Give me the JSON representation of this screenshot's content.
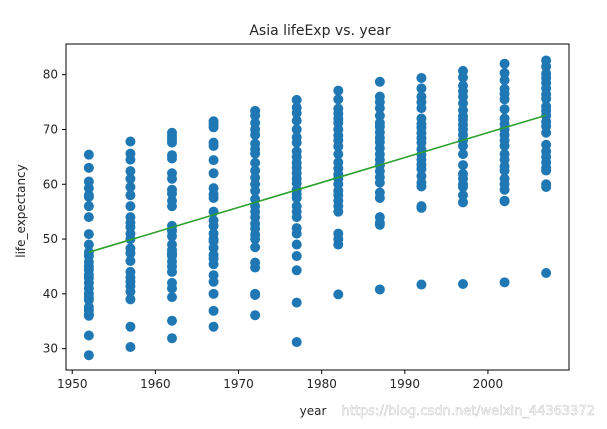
{
  "chart_data": {
    "type": "scatter",
    "title": "Asia lifeExp vs. year",
    "xlabel": "year",
    "ylabel": "life_expectancy",
    "xlim": [
      1949.25,
      2009.75
    ],
    "ylim": [
      26.1,
      85.6
    ],
    "xticks": [
      1950,
      1960,
      1970,
      1980,
      1990,
      2000
    ],
    "yticks": [
      30,
      40,
      50,
      60,
      70,
      80
    ],
    "grid": false,
    "colors": {
      "points": "#1f77b4",
      "fit_line": "#2ca02c",
      "axes": "#000000"
    },
    "points": [
      {
        "year": 1952,
        "values": [
          65.4,
          63.0,
          60.5,
          59.3,
          58.0,
          57.7,
          56.0,
          54.0,
          50.9,
          49.0,
          47.6,
          46.9,
          45.8,
          45.0,
          44.4,
          43.5,
          42.9,
          42.0,
          41.0,
          40.0,
          39.3,
          38.9,
          37.6,
          37.0,
          36.3,
          36.0,
          32.4,
          28.8
        ]
      },
      {
        "year": 1957,
        "values": [
          67.8,
          65.6,
          64.5,
          62.4,
          61.0,
          59.5,
          58.0,
          56.0,
          54.0,
          53.0,
          52.2,
          51.0,
          50.0,
          48.3,
          47.4,
          46.0,
          44.0,
          43.0,
          42.2,
          41.4,
          40.4,
          39.0,
          34.0,
          30.3
        ]
      },
      {
        "year": 1962,
        "values": [
          69.4,
          68.8,
          68.2,
          67.6,
          65.3,
          64.7,
          62.0,
          61.0,
          59.0,
          58.3,
          57.0,
          56.0,
          52.4,
          51.5,
          50.5,
          49.0,
          48.0,
          47.4,
          46.9,
          45.9,
          45.0,
          44.0,
          42.0,
          41.0,
          39.4,
          35.1,
          31.9
        ]
      },
      {
        "year": 1967,
        "values": [
          71.5,
          71.0,
          70.4,
          67.6,
          67.0,
          64.4,
          62.0,
          59.3,
          58.2,
          57.5,
          55.0,
          53.4,
          52.4,
          51.0,
          50.0,
          49.6,
          48.4,
          47.1,
          46.4,
          45.4,
          43.4,
          42.2,
          40.0,
          36.9,
          34.0
        ]
      },
      {
        "year": 1972,
        "values": [
          73.4,
          72.5,
          71.2,
          70.0,
          69.0,
          67.4,
          66.4,
          65.6,
          63.9,
          62.5,
          61.2,
          60.0,
          58.8,
          57.3,
          56.0,
          55.0,
          54.0,
          52.8,
          51.9,
          50.8,
          50.0,
          48.5,
          45.7,
          44.8,
          40.0,
          39.8,
          36.1
        ]
      },
      {
        "year": 1977,
        "values": [
          75.4,
          74.0,
          73.0,
          71.6,
          70.0,
          68.6,
          67.6,
          66.0,
          65.0,
          63.9,
          63.0,
          62.0,
          61.0,
          60.2,
          59.0,
          58.2,
          57.5,
          56.0,
          55.0,
          54.0,
          52.0,
          51.0,
          49.0,
          46.9,
          44.3,
          38.4,
          31.2
        ]
      },
      {
        "year": 1982,
        "values": [
          77.1,
          75.5,
          73.8,
          72.9,
          72.0,
          71.2,
          70.0,
          68.9,
          68.0,
          66.9,
          65.5,
          64.0,
          62.9,
          61.8,
          61.0,
          60.0,
          58.8,
          58.0,
          57.0,
          56.0,
          55.0,
          51.0,
          50.0,
          49.0,
          39.9
        ]
      },
      {
        "year": 1987,
        "values": [
          78.7,
          76.0,
          75.0,
          73.9,
          72.5,
          71.2,
          70.5,
          69.5,
          68.5,
          67.7,
          66.6,
          65.5,
          64.5,
          63.5,
          62.4,
          61.3,
          60.3,
          58.5,
          57.5,
          54.0,
          53.0,
          52.6,
          40.8
        ]
      },
      {
        "year": 1992,
        "values": [
          79.4,
          77.5,
          76.0,
          75.0,
          73.9,
          72.0,
          71.0,
          70.3,
          69.3,
          68.4,
          67.6,
          66.4,
          65.4,
          64.5,
          63.6,
          62.8,
          61.5,
          60.3,
          59.6,
          56.0,
          55.7,
          41.7
        ]
      },
      {
        "year": 1997,
        "values": [
          80.7,
          79.5,
          78.0,
          77.0,
          76.0,
          74.8,
          73.5,
          72.4,
          71.8,
          70.9,
          70.0,
          69.0,
          68.0,
          67.0,
          65.5,
          63.5,
          61.9,
          61.0,
          60.0,
          59.5,
          58.0,
          56.7,
          41.8
        ]
      },
      {
        "year": 2002,
        "values": [
          82.0,
          80.3,
          79.0,
          77.4,
          76.5,
          75.5,
          73.7,
          72.0,
          71.0,
          70.0,
          69.0,
          68.0,
          67.0,
          65.5,
          64.5,
          63.3,
          62.5,
          61.0,
          60.0,
          59.0,
          57.0,
          56.9,
          42.1
        ]
      },
      {
        "year": 2007,
        "values": [
          82.6,
          81.5,
          80.2,
          79.4,
          78.5,
          77.5,
          76.4,
          75.6,
          74.2,
          73.4,
          72.5,
          71.4,
          70.6,
          69.4,
          67.2,
          66.0,
          65.0,
          64.0,
          63.0,
          62.5,
          60.0,
          59.5,
          43.8
        ]
      }
    ],
    "fit_line": {
      "x": [
        1952,
        2007
      ],
      "y": [
        47.6,
        72.6
      ]
    }
  },
  "watermark": "https://blog.csdn.net/weixin_44363372"
}
